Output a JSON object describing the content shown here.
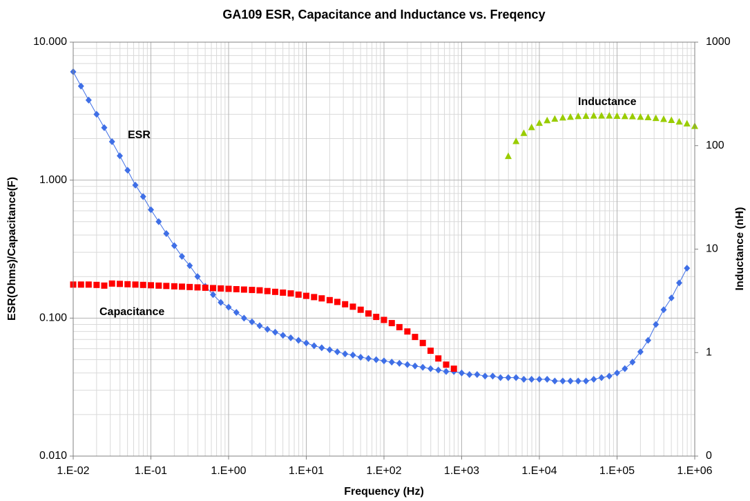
{
  "chart_data": {
    "type": "scatter",
    "title": "GA109 ESR, Capacitance and Inductance vs. Freqency",
    "x_label": "Frequency (Hz)",
    "y_label": "ESR(Ohms)/Capacitance(F)",
    "y2_label": "Inductance (nH)",
    "xlog": true,
    "ylog": true,
    "y2log": true,
    "grid": true,
    "xlim": [
      0.01,
      1000000
    ],
    "xticks": [
      {
        "value": 0.01,
        "label": "1.E-02"
      },
      {
        "value": 0.1,
        "label": "1.E-01"
      },
      {
        "value": 1,
        "label": "1.E+00"
      },
      {
        "value": 10,
        "label": "1.E+01"
      },
      {
        "value": 100,
        "label": "1.E+02"
      },
      {
        "value": 1000,
        "label": "1.E+03"
      },
      {
        "value": 10000,
        "label": "1.E+04"
      },
      {
        "value": 100000,
        "label": "1.E+05"
      },
      {
        "value": 1000000,
        "label": "1.E+06"
      }
    ],
    "ylim": [
      0.01,
      10
    ],
    "yticks": [
      {
        "value": 0.01,
        "label": "0.010"
      },
      {
        "value": 0.1,
        "label": "0.100"
      },
      {
        "value": 1,
        "label": "1.000"
      },
      {
        "value": 10,
        "label": "10.000"
      }
    ],
    "y2lim": [
      0.1,
      1000
    ],
    "y2ticks": [
      {
        "value": 0.1,
        "label": "0"
      },
      1,
      10,
      100,
      1000
    ],
    "x": [
      0.01,
      0.0126,
      0.0158,
      0.02,
      0.0251,
      0.0316,
      0.0398,
      0.0501,
      0.0631,
      0.0794,
      0.1,
      0.126,
      0.158,
      0.2,
      0.251,
      0.316,
      0.398,
      0.501,
      0.631,
      0.794,
      1,
      1.26,
      1.58,
      2,
      2.51,
      3.16,
      3.98,
      5.01,
      6.31,
      7.94,
      10,
      12.6,
      15.8,
      20,
      25.1,
      31.6,
      39.8,
      50.1,
      63.1,
      79.4,
      100,
      126,
      158,
      200,
      251,
      316,
      398,
      501,
      631,
      794,
      1000,
      1260,
      1580,
      2000,
      2510,
      3160,
      3980,
      5010,
      6310,
      7940,
      10000,
      12600,
      15800,
      20000,
      25100,
      31600,
      39800,
      50100,
      63100,
      79400,
      100000,
      126000,
      158000,
      200000,
      251000,
      316000,
      398000,
      501000,
      631000,
      794000,
      1000000
    ],
    "series": [
      {
        "name": "ESR",
        "color": "#3f6fe6",
        "marker": "diamond",
        "line": true,
        "values": [
          6.1,
          4.8,
          3.8,
          3.0,
          2.4,
          1.9,
          1.5,
          1.18,
          0.92,
          0.76,
          0.61,
          0.5,
          0.41,
          0.335,
          0.28,
          0.24,
          0.2,
          0.17,
          0.148,
          0.13,
          0.12,
          0.11,
          0.1,
          0.094,
          0.088,
          0.083,
          0.079,
          0.075,
          0.072,
          0.069,
          0.066,
          0.063,
          0.061,
          0.059,
          0.057,
          0.055,
          0.054,
          0.052,
          0.051,
          0.05,
          0.049,
          0.048,
          0.047,
          0.046,
          0.045,
          0.044,
          0.043,
          0.042,
          0.041,
          0.041,
          0.04,
          0.039,
          0.039,
          0.038,
          0.038,
          0.037,
          0.037,
          0.037,
          0.036,
          0.036,
          0.036,
          0.036,
          0.035,
          0.035,
          0.035,
          0.035,
          0.035,
          0.036,
          0.037,
          0.038,
          0.04,
          0.043,
          0.048,
          0.057,
          0.069,
          0.09,
          0.115,
          0.14,
          0.18,
          0.23,
          null
        ]
      },
      {
        "name": "Capacitance",
        "color": "#ff0000",
        "marker": "square",
        "line": false,
        "values": [
          0.175,
          0.175,
          0.175,
          0.174,
          0.172,
          0.178,
          0.177,
          0.176,
          0.175,
          0.174,
          0.173,
          0.172,
          0.171,
          0.17,
          0.169,
          0.168,
          0.167,
          0.166,
          0.165,
          0.164,
          0.163,
          0.162,
          0.161,
          0.16,
          0.159,
          0.157,
          0.155,
          0.153,
          0.151,
          0.148,
          0.145,
          0.142,
          0.139,
          0.135,
          0.131,
          0.126,
          0.121,
          0.115,
          0.108,
          0.102,
          0.097,
          0.092,
          0.086,
          0.08,
          0.073,
          0.066,
          0.058,
          0.051,
          0.046,
          0.043,
          null,
          null,
          null,
          null,
          null,
          null,
          null,
          null,
          null,
          null,
          null,
          null,
          null,
          null,
          null,
          null,
          null,
          null,
          null,
          null,
          null,
          null,
          null,
          null,
          null,
          null,
          null,
          null,
          null,
          null,
          null
        ]
      },
      {
        "name": "Inductance",
        "color": "#99cc00",
        "marker": "triangle",
        "line": false,
        "axis": "y2",
        "values": [
          null,
          null,
          null,
          null,
          null,
          null,
          null,
          null,
          null,
          null,
          null,
          null,
          null,
          null,
          null,
          null,
          null,
          null,
          null,
          null,
          null,
          null,
          null,
          null,
          null,
          null,
          null,
          null,
          null,
          null,
          null,
          null,
          null,
          null,
          null,
          null,
          null,
          null,
          null,
          null,
          null,
          null,
          null,
          null,
          null,
          null,
          null,
          null,
          null,
          null,
          null,
          null,
          null,
          null,
          null,
          null,
          79,
          110,
          132,
          150,
          165,
          175,
          181,
          186,
          189,
          192,
          193,
          194,
          194,
          194,
          193,
          192,
          191,
          189,
          187,
          184,
          180,
          176,
          170,
          163,
          154
        ]
      }
    ]
  }
}
